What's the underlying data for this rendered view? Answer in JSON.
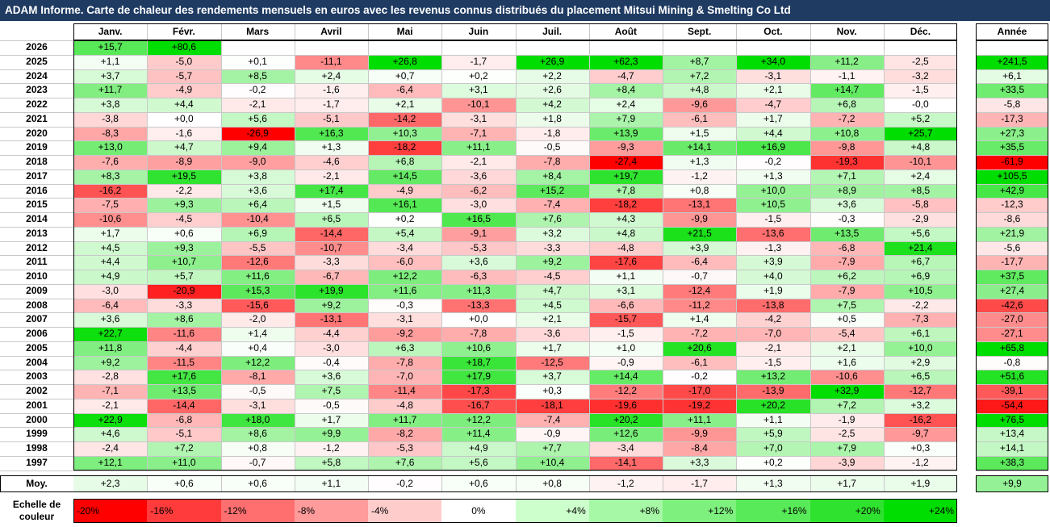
{
  "title": "ADAM Informe. Carte de chaleur des rendements mensuels en euros avec les revenus connus distribués du placement Mitsui Mining & Smelting Co Ltd",
  "chart_data": {
    "type": "heatmap",
    "months": [
      "Janv.",
      "Févr.",
      "Mars",
      "Avril",
      "Mai",
      "Juin",
      "Juil.",
      "Août",
      "Sept.",
      "Oct.",
      "Nov.",
      "Déc."
    ],
    "year_header": "Année",
    "rows": [
      {
        "year": "2026",
        "values": [
          "+15,7",
          "+80,6",
          "",
          "",
          "",
          "",
          "",
          "",
          "",
          "",
          "",
          ""
        ],
        "annual": ""
      },
      {
        "year": "2025",
        "values": [
          "+1,1",
          "-5,0",
          "+0,1",
          "-11,1",
          "+26,8",
          "-1,7",
          "+26,9",
          "+62,3",
          "+8,7",
          "+34,0",
          "+11,2",
          "-2,5"
        ],
        "annual": "+241,5"
      },
      {
        "year": "2024",
        "values": [
          "+3,7",
          "-5,7",
          "+8,5",
          "+2,4",
          "+0,7",
          "+0,2",
          "+2,2",
          "-4,7",
          "+7,2",
          "-3,1",
          "-1,1",
          "-3,2"
        ],
        "annual": "+6,1"
      },
      {
        "year": "2023",
        "values": [
          "+11,7",
          "-4,9",
          "-0,2",
          "-1,6",
          "-6,4",
          "+3,1",
          "+2,6",
          "+8,4",
          "+4,8",
          "+2,1",
          "+14,7",
          "-1,5"
        ],
        "annual": "+33,5"
      },
      {
        "year": "2022",
        "values": [
          "+3,8",
          "+4,4",
          "-2,1",
          "-1,7",
          "+2,1",
          "-10,1",
          "+4,2",
          "+2,4",
          "-9,6",
          "-4,7",
          "+6,8",
          "-0,0"
        ],
        "annual": "-5,8"
      },
      {
        "year": "2021",
        "values": [
          "-3,8",
          "+0,0",
          "+5,6",
          "-5,1",
          "-14,2",
          "-3,1",
          "+1,8",
          "+7,9",
          "-6,1",
          "+1,7",
          "-7,2",
          "+5,2"
        ],
        "annual": "-17,3"
      },
      {
        "year": "2020",
        "values": [
          "-8,3",
          "-1,6",
          "-26,9",
          "+16,3",
          "+10,3",
          "-7,1",
          "-1,8",
          "+13,9",
          "+1,5",
          "+4,4",
          "+10,8",
          "+25,7"
        ],
        "annual": "+27,3"
      },
      {
        "year": "2019",
        "values": [
          "+13,0",
          "+4,7",
          "+9,4",
          "+1,3",
          "-18,2",
          "+11,1",
          "-0,5",
          "-9,3",
          "+14,1",
          "+16,9",
          "-9,8",
          "+4,8"
        ],
        "annual": "+35,5"
      },
      {
        "year": "2018",
        "values": [
          "-7,6",
          "-8,9",
          "-9,0",
          "-4,6",
          "+6,8",
          "-2,1",
          "-7,8",
          "-27,4",
          "+1,3",
          "-0,2",
          "-19,3",
          "-10,1"
        ],
        "annual": "-61,9"
      },
      {
        "year": "2017",
        "values": [
          "+8,3",
          "+19,5",
          "+3,8",
          "-2,1",
          "+14,5",
          "-3,6",
          "+8,4",
          "+19,7",
          "-1,2",
          "+1,3",
          "+7,1",
          "+2,4"
        ],
        "annual": "+105,5"
      },
      {
        "year": "2016",
        "values": [
          "-16,2",
          "-2,2",
          "+3,6",
          "+17,4",
          "-4,9",
          "-6,2",
          "+15,2",
          "+7,8",
          "+0,8",
          "+10,0",
          "+8,9",
          "+8,5"
        ],
        "annual": "+42,9"
      },
      {
        "year": "2015",
        "values": [
          "-7,5",
          "+9,3",
          "+6,4",
          "+1,5",
          "+16,1",
          "-3,0",
          "-7,4",
          "-18,2",
          "-13,1",
          "+10,5",
          "+3,6",
          "-5,8"
        ],
        "annual": "-12,3"
      },
      {
        "year": "2014",
        "values": [
          "-10,6",
          "-4,5",
          "-10,4",
          "+6,5",
          "+0,2",
          "+16,5",
          "+7,6",
          "+4,3",
          "-9,9",
          "-1,5",
          "-0,3",
          "-2,9"
        ],
        "annual": "-8,6"
      },
      {
        "year": "2013",
        "values": [
          "+1,7",
          "+0,6",
          "+6,9",
          "-14,4",
          "+5,4",
          "-9,1",
          "+3,2",
          "+4,8",
          "+21,5",
          "-13,6",
          "+13,5",
          "+5,6"
        ],
        "annual": "+21,9"
      },
      {
        "year": "2012",
        "values": [
          "+4,5",
          "+9,3",
          "-5,5",
          "-10,7",
          "-3,4",
          "-5,3",
          "-3,3",
          "-4,8",
          "+3,9",
          "-1,3",
          "-6,8",
          "+21,4"
        ],
        "annual": "-5,6"
      },
      {
        "year": "2011",
        "values": [
          "+4,4",
          "+10,7",
          "-12,6",
          "-3,3",
          "-6,0",
          "+3,6",
          "+9,2",
          "-17,6",
          "-6,4",
          "+3,9",
          "-7,9",
          "+6,7"
        ],
        "annual": "-17,7"
      },
      {
        "year": "2010",
        "values": [
          "+4,9",
          "+5,7",
          "+11,6",
          "-6,7",
          "+12,2",
          "-6,3",
          "-4,5",
          "+1,1",
          "-0,7",
          "+4,0",
          "+6,2",
          "+6,9"
        ],
        "annual": "+37,5"
      },
      {
        "year": "2009",
        "values": [
          "-3,0",
          "-20,9",
          "+15,3",
          "+19,9",
          "+11,6",
          "+11,3",
          "+4,7",
          "+3,1",
          "-12,4",
          "+1,9",
          "-7,9",
          "+10,5"
        ],
        "annual": "+27,4"
      },
      {
        "year": "2008",
        "values": [
          "-6,4",
          "-3,3",
          "-15,6",
          "+9,2",
          "-0,3",
          "-13,3",
          "+4,5",
          "-6,6",
          "-11,2",
          "-13,8",
          "+7,5",
          "-2,2"
        ],
        "annual": "-42,6"
      },
      {
        "year": "2007",
        "values": [
          "+3,6",
          "+8,6",
          "-2,0",
          "-13,1",
          "-3,1",
          "+0,0",
          "+2,1",
          "-15,7",
          "+1,4",
          "-4,2",
          "+0,5",
          "-7,3"
        ],
        "annual": "-27,0"
      },
      {
        "year": "2006",
        "values": [
          "+22,7",
          "-11,6",
          "+1,4",
          "-4,4",
          "-9,2",
          "-7,8",
          "-3,6",
          "-1,5",
          "-7,2",
          "-7,0",
          "-5,4",
          "+6,1"
        ],
        "annual": "-27,1"
      },
      {
        "year": "2005",
        "values": [
          "+11,8",
          "-4,4",
          "+0,4",
          "-3,0",
          "+6,3",
          "+10,6",
          "+1,7",
          "+1,0",
          "+20,6",
          "-2,1",
          "+2,1",
          "+10,0"
        ],
        "annual": "+65,8"
      },
      {
        "year": "2004",
        "values": [
          "+9,2",
          "-11,5",
          "+12,2",
          "-0,4",
          "-7,8",
          "+18,7",
          "-12,5",
          "-0,9",
          "-6,1",
          "-1,5",
          "+1,6",
          "+2,9"
        ],
        "annual": "-0,8"
      },
      {
        "year": "2003",
        "values": [
          "-2,8",
          "+17,6",
          "-8,1",
          "+3,6",
          "-7,0",
          "+17,9",
          "+3,7",
          "+14,4",
          "-0,2",
          "+13,2",
          "-10,6",
          "+6,5"
        ],
        "annual": "+51,6"
      },
      {
        "year": "2002",
        "values": [
          "-7,1",
          "+13,5",
          "-0,5",
          "+7,5",
          "-11,4",
          "-17,3",
          "+0,3",
          "-12,2",
          "-17,0",
          "-13,9",
          "+32,9",
          "-12,7"
        ],
        "annual": "-39,1"
      },
      {
        "year": "2001",
        "values": [
          "-2,1",
          "-14,4",
          "-3,1",
          "-0,5",
          "-4,8",
          "-16,7",
          "-18,1",
          "-19,6",
          "-19,2",
          "+20,2",
          "+7,2",
          "+3,2"
        ],
        "annual": "-54,4"
      },
      {
        "year": "2000",
        "values": [
          "+22,9",
          "-6,8",
          "+18,0",
          "+1,7",
          "+11,7",
          "+12,2",
          "-7,4",
          "+20,2",
          "+11,1",
          "+1,1",
          "-1,9",
          "-16,2"
        ],
        "annual": "+76,5"
      },
      {
        "year": "1999",
        "values": [
          "+4,6",
          "-5,1",
          "+8,6",
          "+9,9",
          "-8,2",
          "+11,4",
          "-0,9",
          "+12,6",
          "-9,9",
          "+5,9",
          "-2,5",
          "-9,7"
        ],
        "annual": "+13,4"
      },
      {
        "year": "1998",
        "values": [
          "-2,4",
          "+7,2",
          "+0,8",
          "-1,2",
          "-5,3",
          "+4,9",
          "+7,7",
          "-3,4",
          "-8,4",
          "+7,0",
          "+7,9",
          "+0,3"
        ],
        "annual": "+14,1"
      },
      {
        "year": "1997",
        "values": [
          "+12,1",
          "+11,0",
          "-0,7",
          "+5,8",
          "+7,6",
          "+5,6",
          "+10,4",
          "-14,1",
          "+3,3",
          "+0,2",
          "-3,9",
          "-1,2"
        ],
        "annual": "+38,3"
      }
    ],
    "average": {
      "label": "Moy.",
      "values": [
        "+2,3",
        "+0,6",
        "+0,6",
        "+1,1",
        "-0,2",
        "+0,6",
        "+0,8",
        "-1,2",
        "-1,7",
        "+1,3",
        "+1,7",
        "+1,9"
      ],
      "annual": "+9,9"
    },
    "scale": {
      "label_line1": "Echelle de",
      "label_line2": "couleur",
      "steps": [
        {
          "label": "-20%",
          "color": "#ff0000",
          "align": "left"
        },
        {
          "label": "-16%",
          "color": "#ff3b3b",
          "align": "left"
        },
        {
          "label": "-12%",
          "color": "#ff6f6f",
          "align": "left"
        },
        {
          "label": "-8%",
          "color": "#ff9b9b",
          "align": "left"
        },
        {
          "label": "-4%",
          "color": "#ffcccc",
          "align": "left"
        },
        {
          "label": "0%",
          "color": "#ffffff",
          "align": "center"
        },
        {
          "label": "+4%",
          "color": "#ccffcc",
          "align": "right"
        },
        {
          "label": "+8%",
          "color": "#a6f7a6",
          "align": "right"
        },
        {
          "label": "+12%",
          "color": "#7ef07e",
          "align": "right"
        },
        {
          "label": "+16%",
          "color": "#58ea58",
          "align": "right"
        },
        {
          "label": "+20%",
          "color": "#2fe22f",
          "align": "right"
        },
        {
          "label": "+24%",
          "color": "#00dd00",
          "align": "right"
        }
      ]
    }
  }
}
